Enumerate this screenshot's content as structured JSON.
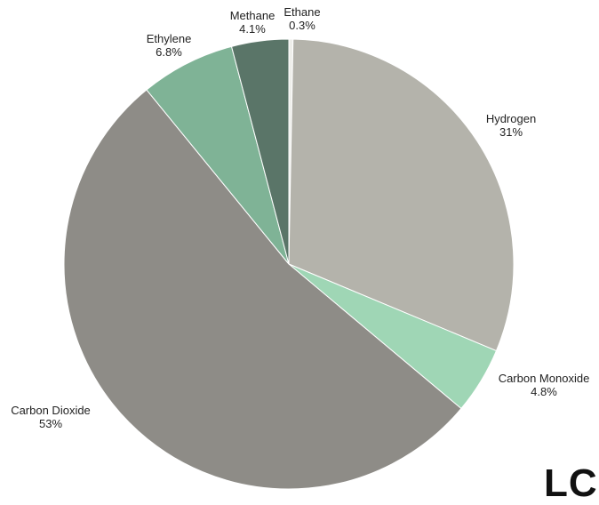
{
  "chart_data": {
    "type": "pie",
    "slices": [
      {
        "label": "Ethane",
        "value": 0.3,
        "value_label": "0.3%",
        "color": "#eeeeea"
      },
      {
        "label": "Hydrogen",
        "value": 31,
        "value_label": "31%",
        "color": "#b4b3ab"
      },
      {
        "label": "Carbon Monoxide",
        "value": 4.8,
        "value_label": "4.8%",
        "color": "#9fd6b5"
      },
      {
        "label": "Carbon Dioxide",
        "value": 53,
        "value_label": "53%",
        "color": "#8e8c87"
      },
      {
        "label": "Ethylene",
        "value": 6.8,
        "value_label": "6.8%",
        "color": "#7fb396"
      },
      {
        "label": "Methane",
        "value": 4.1,
        "value_label": "4.1%",
        "color": "#5a7568"
      }
    ]
  },
  "corner_text": "LC"
}
